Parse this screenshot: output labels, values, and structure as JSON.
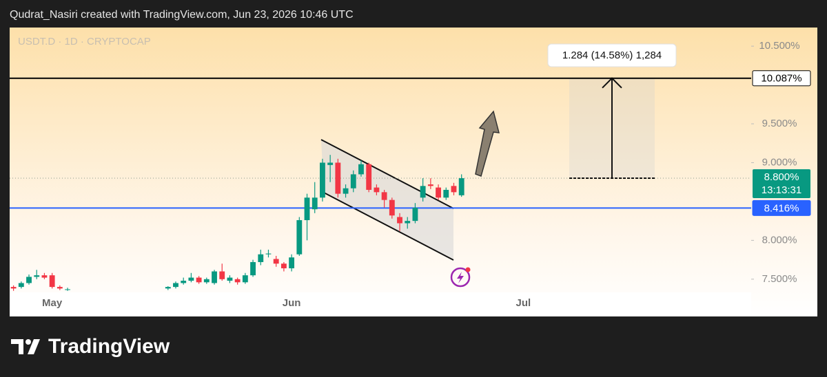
{
  "header": "Qudrat_Nasiri created with TradingView.com, Jun 23, 2026 10:46 UTC",
  "logo": "TradingView",
  "chart_data": {
    "type": "candlestick",
    "symbol": "USDT.D · 1D · CRYPTOCAP",
    "categories": [
      null,
      null,
      null,
      null,
      null,
      "May",
      null,
      null,
      null,
      null,
      null,
      null,
      null,
      null,
      null,
      null,
      null,
      null,
      null,
      null,
      null,
      null,
      null,
      null,
      null,
      null,
      null,
      null,
      null,
      null,
      null,
      null,
      null,
      null,
      null,
      null,
      "Jun",
      null,
      null,
      null,
      null,
      null,
      null,
      null,
      null,
      null,
      null,
      null,
      null,
      null,
      null,
      null,
      null,
      null,
      null,
      null,
      null,
      null,
      null,
      null,
      null,
      null,
      null,
      null,
      null,
      null,
      "Jul",
      null,
      null,
      null,
      null,
      null,
      null,
      null,
      null,
      null,
      null,
      null,
      null,
      null,
      null,
      null,
      null,
      null,
      null,
      null,
      null,
      null,
      null,
      null,
      null,
      null,
      null,
      null,
      null,
      null
    ],
    "open": [
      7.4,
      7.4,
      7.45,
      7.53,
      7.55,
      7.55,
      7.4,
      7.37,
      null,
      null,
      null,
      null,
      null,
      null,
      null,
      null,
      null,
      null,
      null,
      null,
      7.38,
      7.4,
      7.45,
      7.48,
      7.52,
      7.46,
      7.45,
      7.6,
      7.48,
      7.5,
      7.46,
      7.55,
      7.72,
      7.82,
      7.76,
      7.7,
      7.64,
      7.82,
      8.26,
      8.4,
      8.55,
      8.97,
      9.0,
      8.6,
      8.67,
      8.85,
      8.98,
      8.68,
      8.62,
      8.52,
      8.3,
      8.22,
      8.25,
      8.55,
      8.72,
      8.68,
      8.55,
      8.7,
      8.58,
      null,
      null,
      null,
      null,
      null,
      null,
      null,
      null,
      null,
      null,
      null,
      null,
      null,
      null,
      null,
      null,
      null,
      null,
      null,
      null,
      null,
      null,
      null,
      null,
      null,
      null,
      null,
      null,
      null,
      null,
      null,
      null,
      null,
      null,
      null,
      null,
      null
    ],
    "high": [
      7.42,
      7.47,
      7.56,
      7.62,
      7.58,
      7.58,
      7.42,
      7.39,
      null,
      null,
      null,
      null,
      null,
      null,
      null,
      null,
      null,
      null,
      null,
      null,
      7.41,
      7.47,
      7.52,
      7.58,
      7.54,
      7.52,
      7.62,
      7.7,
      7.55,
      7.52,
      7.58,
      7.75,
      7.88,
      7.88,
      7.8,
      7.72,
      7.82,
      8.3,
      8.6,
      8.75,
      9.05,
      9.1,
      9.05,
      8.72,
      8.9,
      9.03,
      9.0,
      8.72,
      8.65,
      8.55,
      8.35,
      8.3,
      8.48,
      8.8,
      8.8,
      8.72,
      8.68,
      8.74,
      8.85,
      null,
      null,
      null,
      null,
      null,
      null,
      null,
      null,
      null,
      null,
      null,
      null,
      null,
      null,
      null,
      null,
      null,
      null,
      null,
      null,
      null,
      null,
      null,
      null,
      null,
      null,
      null,
      null,
      null,
      null,
      null,
      null,
      null,
      null,
      null,
      null,
      null
    ],
    "low": [
      7.35,
      7.38,
      7.43,
      7.5,
      7.5,
      7.38,
      7.36,
      7.35,
      null,
      null,
      null,
      null,
      null,
      null,
      null,
      null,
      null,
      null,
      null,
      null,
      7.36,
      7.38,
      7.43,
      7.46,
      7.44,
      7.44,
      7.43,
      7.48,
      7.45,
      7.43,
      7.44,
      7.53,
      7.68,
      7.78,
      7.66,
      7.6,
      7.6,
      7.8,
      8.0,
      8.35,
      8.5,
      8.75,
      8.55,
      8.55,
      8.62,
      8.82,
      8.62,
      8.58,
      8.42,
      8.28,
      8.12,
      8.15,
      8.22,
      8.5,
      8.66,
      8.52,
      8.52,
      8.58,
      8.56,
      null,
      null,
      null,
      null,
      null,
      null,
      null,
      null,
      null,
      null,
      null,
      null,
      null,
      null,
      null,
      null,
      null,
      null,
      null,
      null,
      null,
      null,
      null,
      null,
      null,
      null,
      null,
      null,
      null,
      null,
      null,
      null,
      null,
      null,
      null,
      null,
      null
    ],
    "close": [
      7.38,
      7.45,
      7.53,
      7.55,
      7.52,
      7.4,
      7.38,
      7.37,
      null,
      null,
      null,
      null,
      null,
      null,
      null,
      null,
      null,
      null,
      null,
      null,
      7.4,
      7.45,
      7.48,
      7.52,
      7.46,
      7.5,
      7.6,
      7.5,
      7.52,
      7.46,
      7.55,
      7.72,
      7.82,
      7.83,
      7.7,
      7.64,
      7.78,
      8.26,
      8.55,
      8.55,
      9.0,
      9.0,
      8.6,
      8.67,
      8.85,
      8.98,
      8.65,
      8.62,
      8.52,
      8.32,
      8.22,
      8.25,
      8.42,
      8.7,
      8.7,
      8.55,
      8.65,
      8.62,
      8.8,
      null,
      null,
      null,
      null,
      null,
      null,
      null,
      null,
      null,
      null,
      null,
      null,
      null,
      null,
      null,
      null,
      null,
      null,
      null,
      null,
      null,
      null,
      null,
      null,
      null,
      null,
      null,
      null,
      null,
      null,
      null,
      null,
      null,
      null,
      null,
      null,
      null
    ],
    "up_color": "#089981",
    "down_color": "#f23645",
    "ylim": [
      7.33,
      10.74
    ],
    "yticks": [
      {
        "value": 10.5,
        "label": "10.500%"
      },
      {
        "value": 9.5,
        "label": "9.500%"
      },
      {
        "value": 9.0,
        "label": "9.000%"
      },
      {
        "value": 8.0,
        "label": "8.000%"
      },
      {
        "value": 7.5,
        "label": "7.500%"
      }
    ],
    "price_lines": [
      {
        "value": 10.087,
        "label": "10.087%",
        "color": "#000000"
      },
      {
        "value": 8.416,
        "label": "8.416%",
        "color": "#2962ff"
      }
    ],
    "last_price": {
      "value": 8.8,
      "label": "8.800%",
      "countdown": "13:13:31"
    },
    "measure_label": "1.284 (14.58%) 1,284"
  }
}
